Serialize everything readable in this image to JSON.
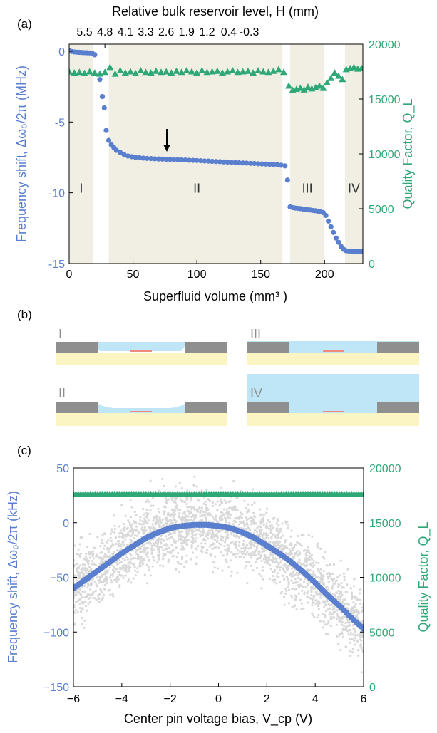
{
  "colors": {
    "blue": "#5b7fcf",
    "green": "#2ea876",
    "band": "#f1efe4",
    "grey_points": "#d9d9d9",
    "schematic_substrate": "#fbf5c3",
    "schematic_electrode": "#8f8f8f",
    "schematic_fluid": "#bfe6f6",
    "schematic_pin": "#ef8a7c"
  },
  "panel_a": {
    "label": "(a)",
    "top_axis_label": "Relative bulk reservoir level, H (mm)",
    "top_ticks": [
      "5.5",
      "4.8",
      "4.1",
      "3.3",
      "2.6",
      "1.9",
      "1.2",
      "0.4",
      "-0.3"
    ],
    "xlabel": "Superfluid volume (mm³ )",
    "ylabel_left": "Frequency shift, Δω₀/2π (MHz)",
    "ylabel_right": "Quality Factor, Q_L",
    "regions": [
      "I",
      "II",
      "III",
      "IV"
    ],
    "x_ticks": [
      "0",
      "50",
      "100",
      "150",
      "200"
    ],
    "y_left_ticks": [
      "0",
      "-5",
      "-10",
      "-15"
    ],
    "y_right_ticks": [
      "20000",
      "15000",
      "10000",
      "5000",
      "0"
    ]
  },
  "panel_b": {
    "label": "(b)",
    "cells": [
      "I",
      "III",
      "II",
      "IV"
    ]
  },
  "panel_c": {
    "label": "(c)",
    "xlabel": "Center pin voltage bias, V_cp (V)",
    "ylabel_left": "Frequency shift, Δω₀/2π (kHz)",
    "ylabel_right": "Quality Factor, Q_L",
    "x_ticks": [
      "−6",
      "−4",
      "−2",
      "0",
      "2",
      "4",
      "6"
    ],
    "y_left_ticks": [
      "50",
      "0",
      "−50",
      "−100",
      "−150"
    ],
    "y_right_ticks": [
      "20000",
      "15000",
      "10000",
      "5000",
      "0"
    ]
  },
  "chart_data": [
    {
      "type": "scatter",
      "panel": "a",
      "xlabel": "Superfluid volume (mm³ )",
      "ylabel": "Frequency shift, Δω₀/2π (MHz)",
      "y2label": "Quality Factor, Q_L",
      "xlim": [
        0,
        230
      ],
      "ylim": [
        -15,
        0.5
      ],
      "y2lim": [
        0,
        20000
      ],
      "regions": [
        {
          "name": "I",
          "x": [
            0,
            19
          ]
        },
        {
          "name": "II",
          "x": [
            31,
            167
          ]
        },
        {
          "name": "III",
          "x": [
            173,
            200
          ]
        },
        {
          "name": "IV",
          "x": [
            216,
            230
          ]
        }
      ],
      "series": [
        {
          "axis": "left",
          "x": [
            0,
            2,
            4,
            6,
            8,
            10,
            12,
            14,
            16,
            18,
            20,
            24,
            26,
            27.5,
            29,
            31,
            33,
            35,
            37,
            40,
            43,
            46,
            49,
            52,
            55,
            58,
            61,
            64,
            67,
            70,
            73,
            76,
            79,
            82,
            85,
            88,
            91,
            94,
            97,
            100,
            103,
            106,
            109,
            112,
            115,
            118,
            121,
            124,
            127,
            130,
            133,
            136,
            139,
            142,
            145,
            148,
            151,
            154,
            157,
            160,
            163,
            166,
            169,
            171,
            173,
            175,
            177,
            179,
            181,
            183,
            185,
            187,
            189,
            191,
            193,
            195,
            197,
            199,
            201,
            203,
            205,
            207,
            209,
            211,
            213,
            215,
            217,
            219,
            221,
            223,
            225,
            227,
            229
          ],
          "values": [
            0.05,
            -0.02,
            -0.05,
            -0.07,
            -0.08,
            -0.09,
            -0.1,
            -0.11,
            -0.12,
            -0.14,
            -0.25,
            -2.0,
            -3.2,
            -4.0,
            -5.6,
            -6.3,
            -6.6,
            -6.8,
            -7.0,
            -7.15,
            -7.3,
            -7.4,
            -7.45,
            -7.5,
            -7.52,
            -7.55,
            -7.57,
            -7.58,
            -7.6,
            -7.61,
            -7.62,
            -7.63,
            -7.64,
            -7.65,
            -7.66,
            -7.67,
            -7.68,
            -7.7,
            -7.71,
            -7.72,
            -7.73,
            -7.75,
            -7.76,
            -7.78,
            -7.79,
            -7.8,
            -7.82,
            -7.83,
            -7.85,
            -7.86,
            -7.88,
            -7.89,
            -7.9,
            -7.92,
            -7.93,
            -7.95,
            -7.96,
            -7.97,
            -7.99,
            -8.0,
            -8.0,
            -8.05,
            -8.1,
            -9.1,
            -11.0,
            -11.05,
            -11.08,
            -11.1,
            -11.12,
            -11.15,
            -11.17,
            -11.2,
            -11.22,
            -11.25,
            -11.27,
            -11.3,
            -11.35,
            -11.4,
            -11.6,
            -12.0,
            -12.4,
            -12.8,
            -13.2,
            -13.5,
            -13.8,
            -14.0,
            -14.1,
            -14.12,
            -14.13,
            -14.14,
            -14.15,
            -14.15,
            -14.15
          ]
        },
        {
          "axis": "right",
          "x": [
            0,
            4,
            8,
            12,
            16,
            20,
            24,
            28,
            32,
            36,
            40,
            44,
            48,
            52,
            56,
            60,
            64,
            68,
            72,
            76,
            80,
            84,
            88,
            92,
            96,
            100,
            104,
            108,
            112,
            116,
            120,
            124,
            128,
            132,
            136,
            140,
            144,
            148,
            152,
            156,
            160,
            164,
            168,
            172,
            175,
            178,
            181,
            184,
            187,
            190,
            193,
            196,
            199,
            202,
            205,
            208,
            211,
            214,
            217,
            220,
            223,
            226,
            229
          ],
          "values": [
            17500,
            17400,
            17450,
            17350,
            17500,
            17400,
            17300,
            17450,
            17900,
            17300,
            17600,
            17400,
            17500,
            17350,
            17600,
            17450,
            17400,
            17550,
            17450,
            17500,
            17400,
            17550,
            17450,
            17600,
            17500,
            17400,
            17600,
            17450,
            17500,
            17550,
            17400,
            17500,
            17600,
            17450,
            17500,
            17550,
            17400,
            17600,
            17500,
            17450,
            17550,
            17700,
            17450,
            16200,
            15800,
            15900,
            16000,
            15850,
            16100,
            15950,
            16050,
            16200,
            16000,
            16500,
            16900,
            17400,
            17100,
            16800,
            17700,
            17800,
            17900,
            17750,
            17800
          ]
        }
      ]
    },
    {
      "type": "scatter",
      "panel": "c",
      "xlabel": "Center pin voltage bias, V_cp (V)",
      "ylabel": "Frequency shift, Δω₀/2π (kHz)",
      "y2label": "Quality Factor, Q_L",
      "xlim": [
        -6,
        6
      ],
      "ylim": [
        -150,
        50
      ],
      "y2lim": [
        0,
        20000
      ],
      "series": [
        {
          "axis": "left",
          "x": [
            -6,
            -5.5,
            -5,
            -4.5,
            -4,
            -3.5,
            -3,
            -2.5,
            -2,
            -1.5,
            -1,
            -0.5,
            0,
            0.5,
            1,
            1.5,
            2,
            2.5,
            3,
            3.5,
            4,
            4.5,
            5,
            5.5,
            6
          ],
          "values": [
            -60,
            -52,
            -44,
            -36,
            -28,
            -21,
            -14,
            -9,
            -5,
            -3,
            -2,
            -2,
            -3,
            -5,
            -9,
            -14,
            -21,
            -28,
            -36,
            -45,
            -55,
            -66,
            -76,
            -87,
            -97
          ]
        },
        {
          "axis": "right",
          "x": [
            -6,
            -5.5,
            -5,
            -4.5,
            -4,
            -3.5,
            -3,
            -2.5,
            -2,
            -1.5,
            -1,
            -0.5,
            0,
            0.5,
            1,
            1.5,
            2,
            2.5,
            3,
            3.5,
            4,
            4.5,
            5,
            5.5,
            6
          ],
          "values": [
            17600,
            17620,
            17600,
            17610,
            17590,
            17600,
            17610,
            17620,
            17600,
            17610,
            17600,
            17620,
            17610,
            17600,
            17620,
            17610,
            17600,
            17610,
            17620,
            17600,
            17610,
            17600,
            17620,
            17610,
            17600
          ]
        }
      ]
    }
  ]
}
